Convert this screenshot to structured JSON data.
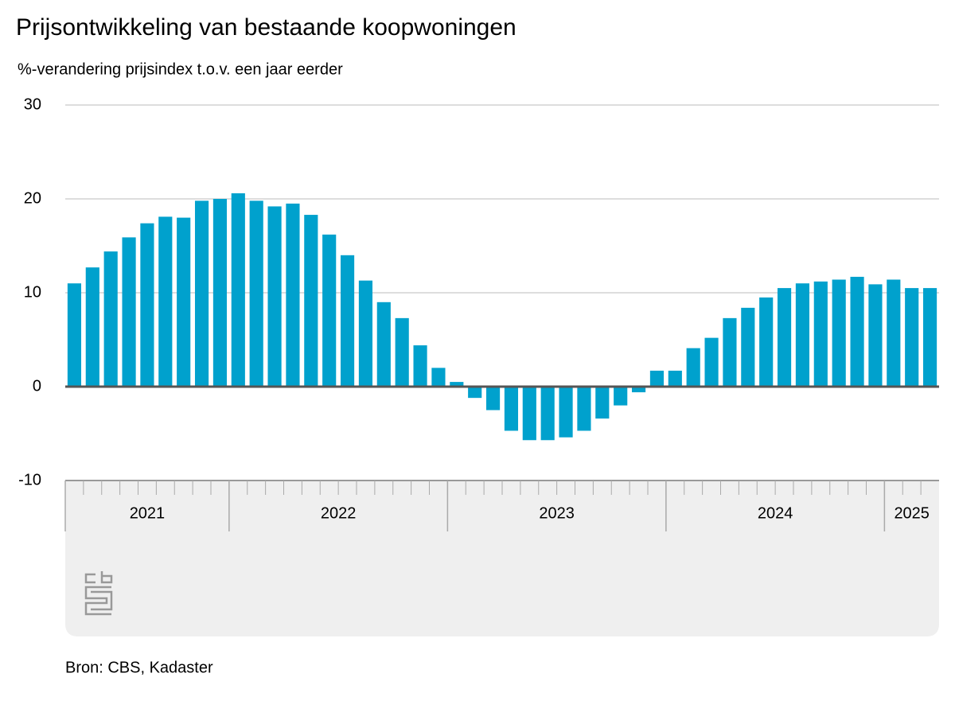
{
  "chart_data": {
    "type": "bar",
    "title": "Prijsontwikkeling van bestaande koopwoningen",
    "subtitle": "%-verandering prijsindex t.o.v. een jaar eerder",
    "source": "Bron: CBS, Kadaster",
    "categories": [
      null,
      null,
      null,
      null,
      null,
      null,
      null,
      null,
      null,
      null,
      null,
      null,
      null,
      null,
      null,
      null,
      null,
      null,
      null,
      null,
      null,
      null,
      null,
      null,
      null,
      null,
      null,
      null,
      null,
      null,
      null,
      null,
      null,
      null,
      null,
      null,
      null,
      null,
      null,
      null,
      null,
      null,
      null,
      null,
      null,
      null,
      null,
      null
    ],
    "values": [
      11.0,
      12.7,
      14.4,
      15.9,
      17.4,
      18.1,
      18.0,
      19.8,
      20.0,
      20.6,
      19.8,
      19.2,
      19.5,
      18.3,
      16.2,
      14.0,
      11.3,
      9.0,
      7.3,
      4.4,
      2.0,
      0.5,
      -1.2,
      -2.5,
      -4.7,
      -5.7,
      -5.7,
      -5.4,
      -4.7,
      -3.4,
      -2.0,
      -0.6,
      1.7,
      1.7,
      4.1,
      5.2,
      7.3,
      8.4,
      9.5,
      10.5,
      11.0,
      11.2,
      11.4,
      11.7,
      10.9,
      11.4,
      10.5,
      10.5
    ],
    "color": "#00a1cd",
    "year_groups": [
      {
        "label": "2021",
        "months": 9
      },
      {
        "label": "2022",
        "months": 12
      },
      {
        "label": "2023",
        "months": 12
      },
      {
        "label": "2024",
        "months": 12
      },
      {
        "label": "2025",
        "months": 3
      }
    ],
    "ylim": [
      -10,
      30
    ],
    "yticks": [
      -10,
      0,
      10,
      20,
      30
    ],
    "grid": true
  }
}
